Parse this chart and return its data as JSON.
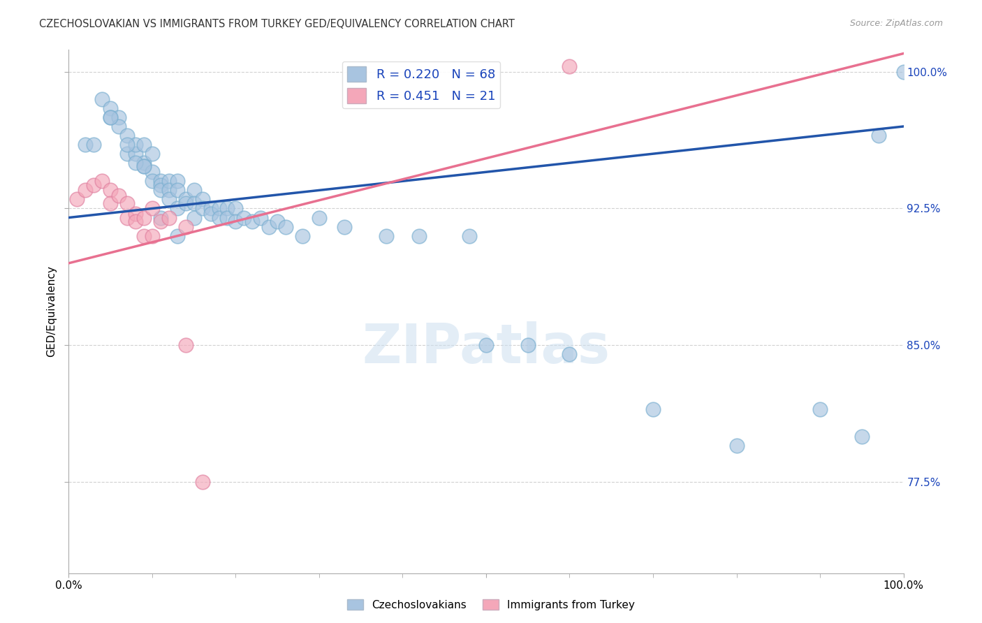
{
  "title": "CZECHOSLOVAKIAN VS IMMIGRANTS FROM TURKEY GED/EQUIVALENCY CORRELATION CHART",
  "source": "Source: ZipAtlas.com",
  "ylabel": "GED/Equivalency",
  "watermark": "ZIPatlas",
  "xlim": [
    0.0,
    1.0
  ],
  "ylim_min": 0.725,
  "ylim_max": 1.012,
  "yticks": [
    0.775,
    0.85,
    0.925,
    1.0
  ],
  "ytick_labels": [
    "77.5%",
    "85.0%",
    "92.5%",
    "100.0%"
  ],
  "blue_R": 0.22,
  "blue_N": 68,
  "pink_R": 0.451,
  "pink_N": 21,
  "blue_color": "#a8c4e0",
  "pink_color": "#f4a7b9",
  "blue_line_color": "#2255aa",
  "pink_line_color": "#e87090",
  "legend_text_color": "#1a44bb",
  "title_color": "#333333",
  "right_axis_color": "#1a44bb",
  "grid_color": "#cccccc",
  "blue_scatter_x": [
    0.02,
    0.04,
    0.05,
    0.05,
    0.06,
    0.06,
    0.07,
    0.07,
    0.08,
    0.08,
    0.09,
    0.09,
    0.09,
    0.1,
    0.1,
    0.1,
    0.11,
    0.11,
    0.11,
    0.12,
    0.12,
    0.12,
    0.13,
    0.13,
    0.13,
    0.14,
    0.14,
    0.15,
    0.15,
    0.15,
    0.16,
    0.16,
    0.17,
    0.17,
    0.18,
    0.18,
    0.19,
    0.19,
    0.2,
    0.2,
    0.21,
    0.22,
    0.23,
    0.24,
    0.25,
    0.26,
    0.28,
    0.3,
    0.33,
    0.38,
    0.42,
    0.48,
    0.5,
    0.55,
    0.6,
    0.7,
    0.8,
    0.9,
    0.95,
    0.03,
    0.05,
    0.07,
    0.08,
    0.09,
    0.11,
    0.13,
    0.97,
    1.0
  ],
  "blue_scatter_y": [
    0.96,
    0.985,
    0.98,
    0.975,
    0.975,
    0.97,
    0.965,
    0.955,
    0.955,
    0.96,
    0.96,
    0.95,
    0.948,
    0.955,
    0.945,
    0.94,
    0.94,
    0.938,
    0.935,
    0.94,
    0.935,
    0.93,
    0.94,
    0.935,
    0.925,
    0.93,
    0.928,
    0.935,
    0.928,
    0.92,
    0.93,
    0.925,
    0.925,
    0.922,
    0.925,
    0.92,
    0.925,
    0.92,
    0.925,
    0.918,
    0.92,
    0.918,
    0.92,
    0.915,
    0.918,
    0.915,
    0.91,
    0.92,
    0.915,
    0.91,
    0.91,
    0.91,
    0.85,
    0.85,
    0.845,
    0.815,
    0.795,
    0.815,
    0.8,
    0.96,
    0.975,
    0.96,
    0.95,
    0.948,
    0.92,
    0.91,
    0.965,
    1.0
  ],
  "pink_scatter_x": [
    0.01,
    0.02,
    0.03,
    0.04,
    0.05,
    0.05,
    0.06,
    0.07,
    0.07,
    0.08,
    0.08,
    0.09,
    0.09,
    0.1,
    0.1,
    0.11,
    0.12,
    0.14,
    0.16,
    0.14,
    0.6
  ],
  "pink_scatter_y": [
    0.93,
    0.935,
    0.938,
    0.94,
    0.935,
    0.928,
    0.932,
    0.928,
    0.92,
    0.922,
    0.918,
    0.92,
    0.91,
    0.925,
    0.91,
    0.918,
    0.92,
    0.915,
    0.775,
    0.85,
    1.003
  ],
  "blue_line_x0": 0.0,
  "blue_line_y0": 0.92,
  "blue_line_x1": 1.0,
  "blue_line_y1": 0.97,
  "pink_line_x0": 0.0,
  "pink_line_y0": 0.895,
  "pink_line_x1": 1.0,
  "pink_line_y1": 1.01
}
